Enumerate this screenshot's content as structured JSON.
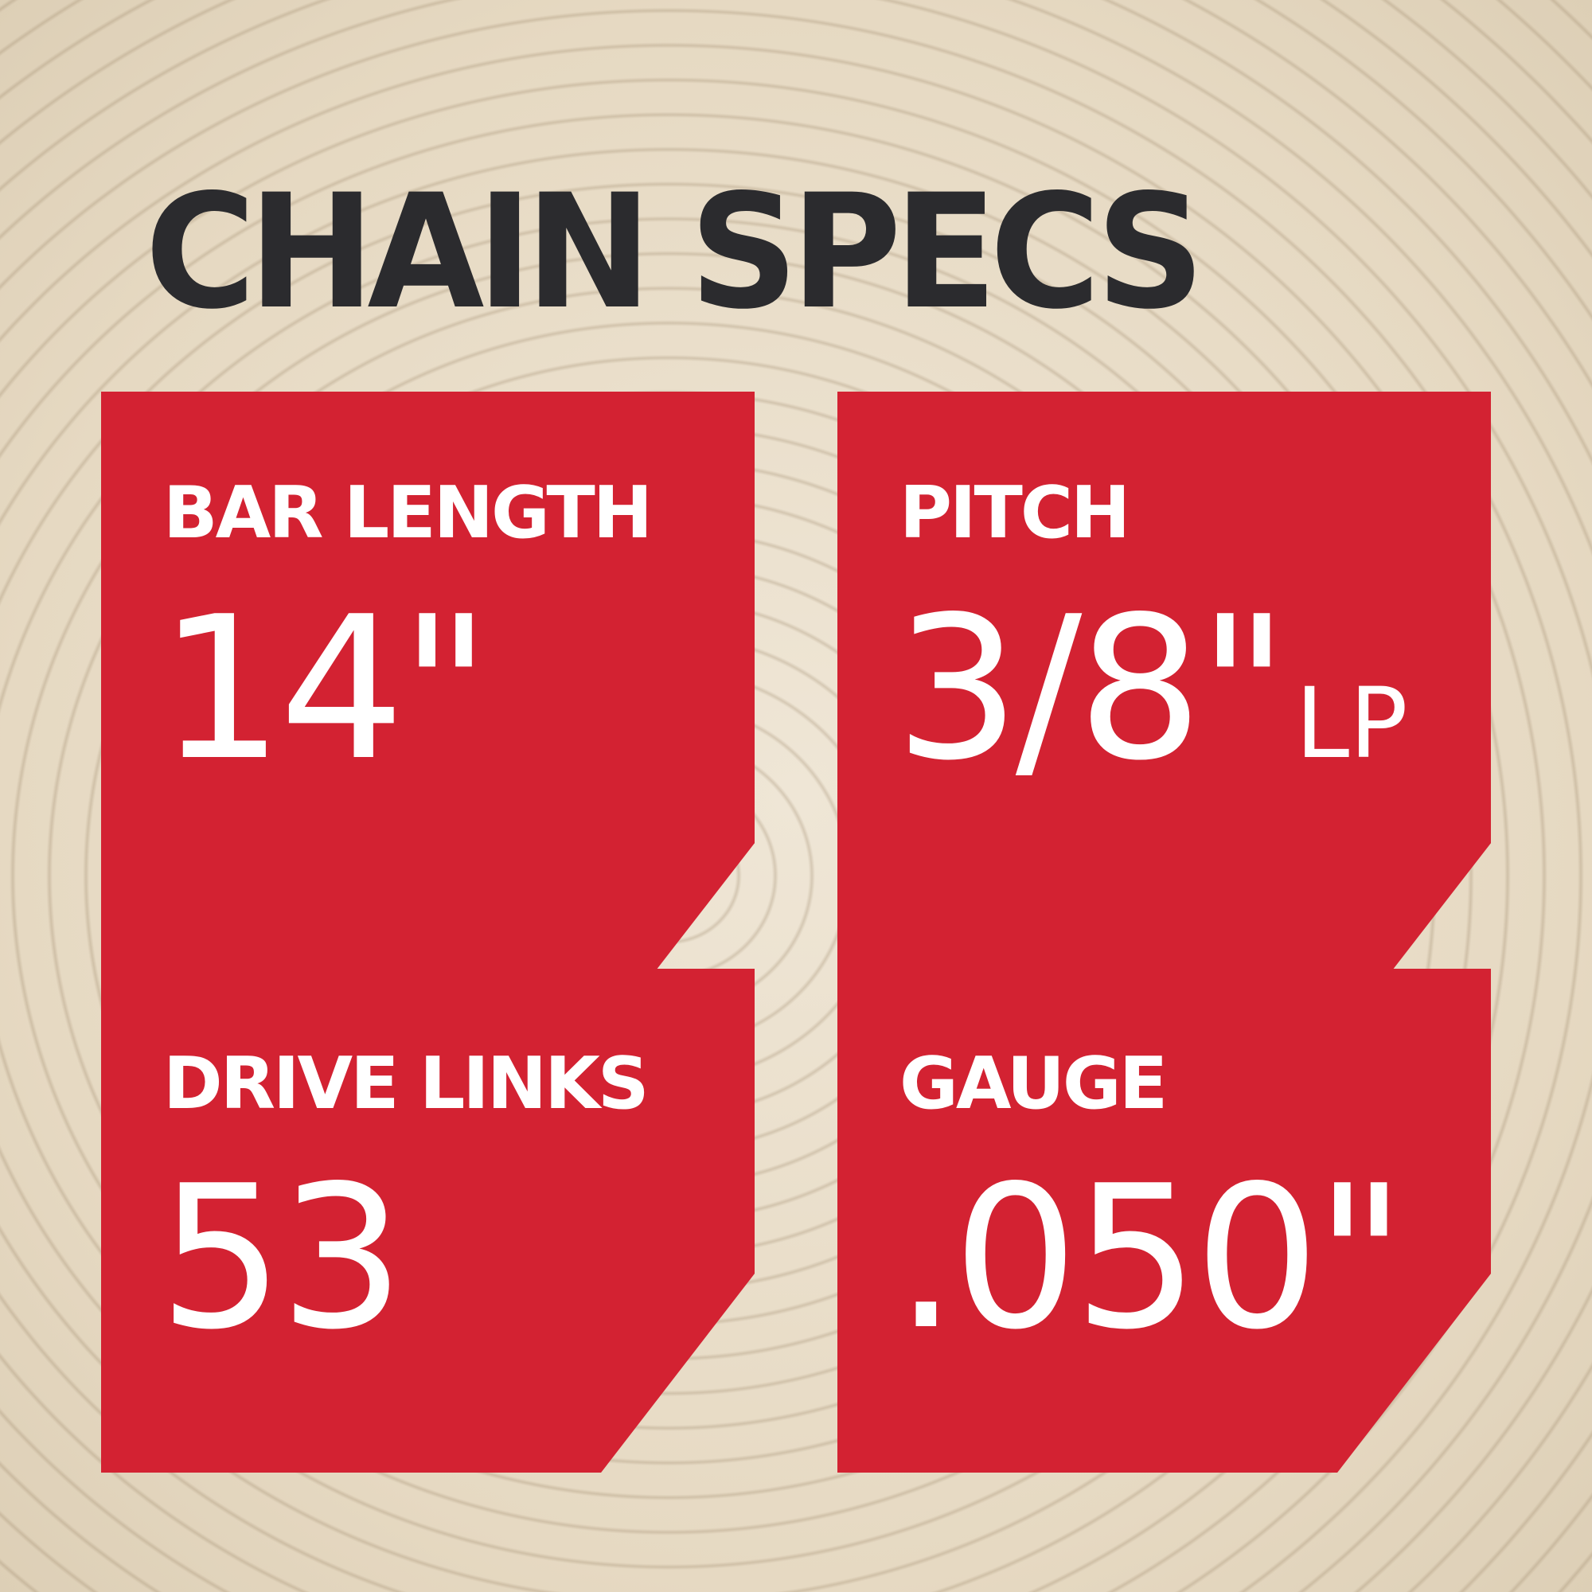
{
  "title": "CHAIN SPECS",
  "colors": {
    "card": "#d32232",
    "title": "#2b2b2e",
    "text": "#ffffff",
    "background": "#e9dfcc"
  },
  "specs": [
    {
      "label": "BAR LENGTH",
      "value": "14\"",
      "unit": ""
    },
    {
      "label": "PITCH",
      "value": "3/8\"",
      "unit": "LP"
    },
    {
      "label": "DRIVE LINKS",
      "value": "53",
      "unit": ""
    },
    {
      "label": "GAUGE",
      "value": ".050\"",
      "unit": ""
    }
  ]
}
